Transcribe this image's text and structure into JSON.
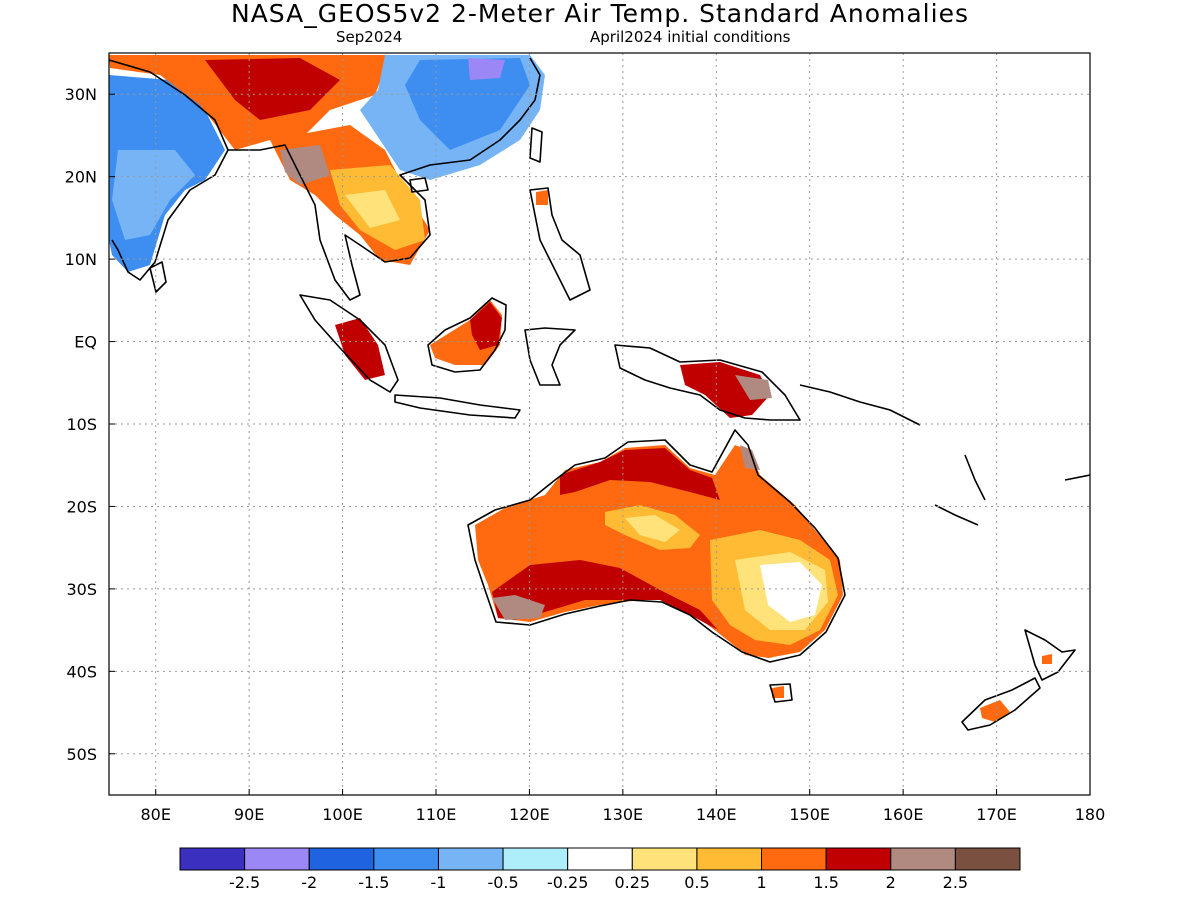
{
  "header": {
    "title": "NASA_GEOS5v2 2-Meter Air Temp. Standard Anomalies",
    "valid": "Sep2024",
    "init": "April2024 initial conditions"
  },
  "map": {
    "lon_range": [
      75,
      180
    ],
    "lat_range": [
      -55,
      35
    ],
    "lon_ticks": [
      {
        "v": 80,
        "label": "80E"
      },
      {
        "v": 90,
        "label": "90E"
      },
      {
        "v": 100,
        "label": "100E"
      },
      {
        "v": 110,
        "label": "110E"
      },
      {
        "v": 120,
        "label": "120E"
      },
      {
        "v": 130,
        "label": "130E"
      },
      {
        "v": 140,
        "label": "140E"
      },
      {
        "v": 150,
        "label": "150E"
      },
      {
        "v": 160,
        "label": "160E"
      },
      {
        "v": 170,
        "label": "170E"
      },
      {
        "v": 180,
        "label": "180"
      }
    ],
    "lat_ticks": [
      {
        "v": 30,
        "label": "30N"
      },
      {
        "v": 20,
        "label": "20N"
      },
      {
        "v": 10,
        "label": "10N"
      },
      {
        "v": 0,
        "label": "EQ"
      },
      {
        "v": -10,
        "label": "10S"
      },
      {
        "v": -20,
        "label": "20S"
      },
      {
        "v": -30,
        "label": "30S"
      },
      {
        "v": -40,
        "label": "40S"
      },
      {
        "v": -50,
        "label": "50S"
      }
    ],
    "grid": true
  },
  "colorbar": {
    "colors": [
      "#3b2fbf",
      "#9b87f5",
      "#1f63e0",
      "#3d8ef0",
      "#76b4f5",
      "#aeeefa",
      "#ffffff",
      "#ffe27a",
      "#ffbb33",
      "#ff6a10",
      "#c00000",
      "#b08a80",
      "#7a5040"
    ],
    "labels": [
      "-2.5",
      "-2",
      "-1.5",
      "-1",
      "-0.5",
      "-0.25",
      "0.25",
      "0.5",
      "1",
      "1.5",
      "2",
      "2.5"
    ]
  },
  "regions": [
    {
      "name": "india",
      "color": "#3d8ef0"
    },
    {
      "name": "china",
      "color": "#76b4f5"
    },
    {
      "name": "tibet",
      "color": "#ff6a10"
    },
    {
      "name": "indochina",
      "color": "#ffbb33"
    },
    {
      "name": "borneo",
      "color": "#ff6a10"
    },
    {
      "name": "sumatra",
      "color": "#c00000"
    },
    {
      "name": "new-guinea",
      "color": "#c00000"
    },
    {
      "name": "australia",
      "color": "#ff6a10"
    },
    {
      "name": "australia-north-band",
      "color": "#c00000"
    },
    {
      "name": "australia-south-band",
      "color": "#c00000"
    },
    {
      "name": "australia-east-warm",
      "color": "#ffbb33"
    },
    {
      "name": "australia-east-neutral",
      "color": "#ffffff"
    },
    {
      "name": "tasmania",
      "color": "#ff6a10"
    },
    {
      "name": "new-zealand",
      "color": "#ff6a10"
    }
  ]
}
